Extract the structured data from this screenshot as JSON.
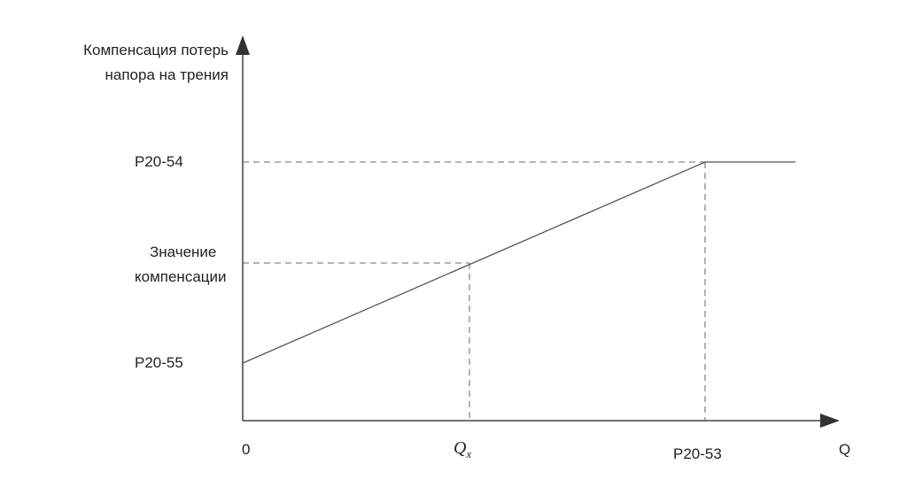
{
  "y_axis": {
    "title_line1": "Компенсация потерь",
    "title_line2": "напора на трения"
  },
  "x_axis": {
    "title": "Q",
    "origin": "0"
  },
  "labels": {
    "upper_level": "P20-54",
    "lower_level": "P20-55",
    "comp_line1": "Значение",
    "comp_line2": "компенсации",
    "qx_main": "Q",
    "qx_sub": "x",
    "flow_limit": "P20-53"
  },
  "colors": {
    "axis": "#444444",
    "line": "#555555",
    "dash": "#888888"
  }
}
